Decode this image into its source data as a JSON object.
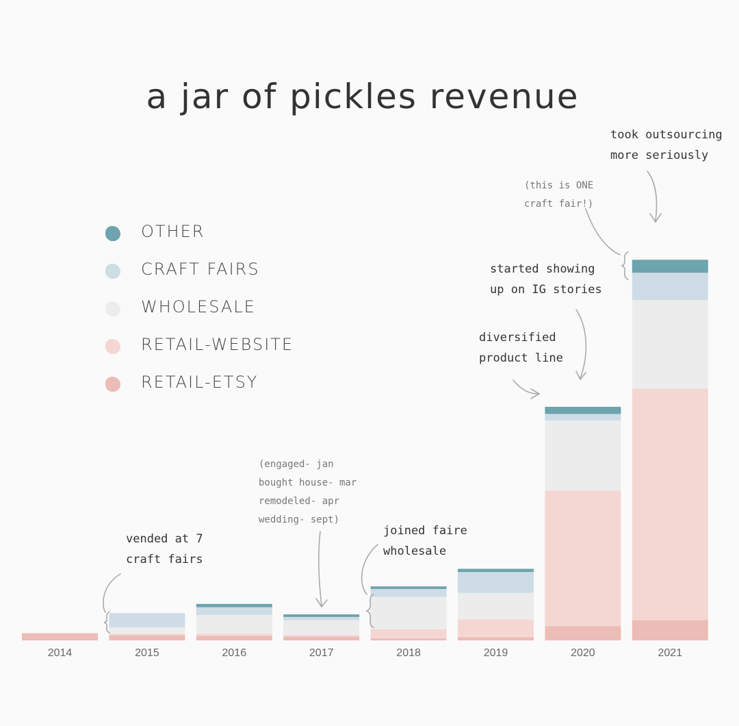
{
  "chart_data": {
    "type": "bar",
    "stacked": true,
    "title": "a jar of pickles revenue",
    "xlabel": "",
    "ylabel": "",
    "categories": [
      "2014",
      "2015",
      "2016",
      "2017",
      "2018",
      "2019",
      "2020",
      "2021"
    ],
    "series": [
      {
        "name": "RETAIL-ETSY",
        "color": "#ecbcb6",
        "values": [
          11,
          8,
          7,
          6,
          3,
          5,
          22,
          31
        ]
      },
      {
        "name": "RETAIL-WEBSITE",
        "color": "#f4d6d3",
        "values": [
          0,
          2,
          3,
          2,
          14,
          27,
          208,
          356
        ]
      },
      {
        "name": "WHOLESALE",
        "color": "#ececec",
        "values": [
          0,
          10,
          29,
          23,
          50,
          41,
          108,
          136
        ]
      },
      {
        "name": "CRAFT FAIRS",
        "color": "#cedce5",
        "values": [
          0,
          22,
          12,
          5,
          12,
          32,
          10,
          42
        ]
      },
      {
        "name": "OTHER",
        "color": "#6da4ae",
        "values": [
          0,
          0,
          5,
          4,
          4,
          5,
          11,
          20
        ]
      }
    ],
    "ylim": [
      0,
      600
    ],
    "grid": false,
    "legend_position": "left"
  },
  "annotations": [
    {
      "id": "craft-fairs-2015",
      "text": "vended at 7\ncraft fairs",
      "style": "dark"
    },
    {
      "id": "life-events-2017",
      "text": "(engaged- jan\nbought house- mar\nremodeled- apr\nwedding- sept)",
      "style": "grey"
    },
    {
      "id": "faire-2018",
      "text": "joined faire\nwholesale",
      "style": "dark"
    },
    {
      "id": "diversified-2020",
      "text": "diversified\nproduct line",
      "style": "dark"
    },
    {
      "id": "ig-stories-2020",
      "text": "started showing\nup on IG stories",
      "style": "dark"
    },
    {
      "id": "one-fair-2021",
      "text": "(this is ONE\ncraft fair!)",
      "style": "grey"
    },
    {
      "id": "outsourcing-2021",
      "text": "took outsourcing\nmore seriously",
      "style": "dark"
    }
  ]
}
